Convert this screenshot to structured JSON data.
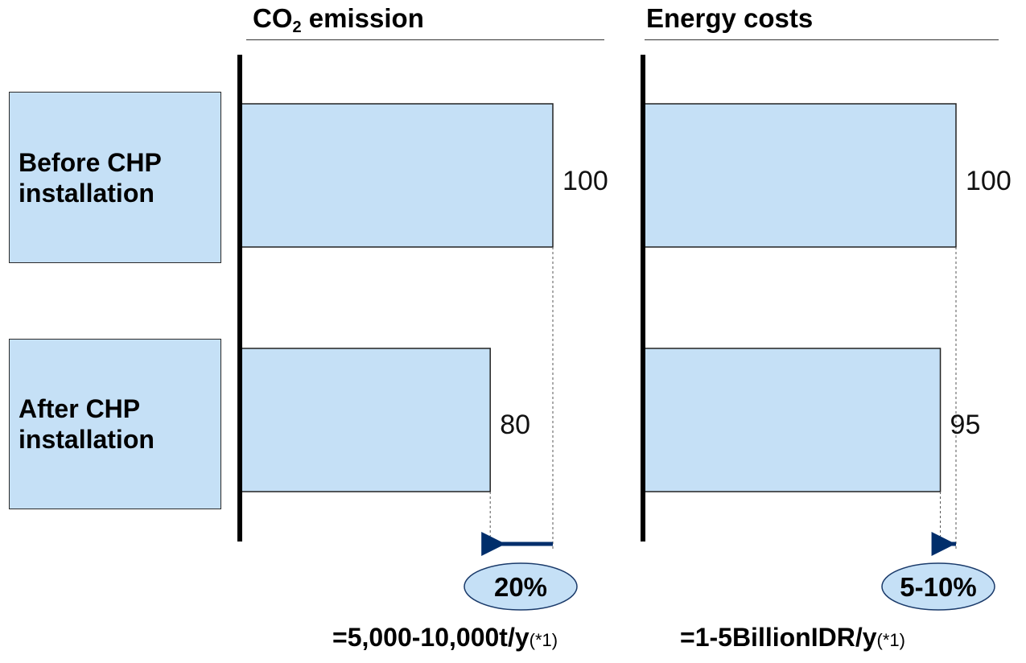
{
  "categories": [
    {
      "line1": "Before CHP",
      "line2": "installation"
    },
    {
      "line1": "After CHP",
      "line2": "installation"
    }
  ],
  "panels": [
    {
      "title_main": "CO",
      "title_sub": "2",
      "title_rest": " emission",
      "reduction_label": "20%",
      "footnote_main": "=5,000-10,000t/y",
      "footnote_ref": "(*1)"
    },
    {
      "title_main": "Energy costs",
      "title_sub": "",
      "title_rest": "",
      "reduction_label": "5-10%",
      "footnote_main": "=1-5BillionIDR/y",
      "footnote_ref": "(*1)"
    }
  ],
  "colors": {
    "bar_fill": "#c5e0f6",
    "arrow": "#002e6b",
    "axis": "#000000"
  },
  "chart_data": [
    {
      "type": "bar",
      "orientation": "horizontal",
      "title": "CO2 emission",
      "categories": [
        "Before CHP installation",
        "After CHP installation"
      ],
      "values": [
        100,
        80
      ],
      "value_labels": [
        "100",
        "80"
      ],
      "xlim": [
        0,
        100
      ],
      "grid": false,
      "annotation": "20%"
    },
    {
      "type": "bar",
      "orientation": "horizontal",
      "title": "Energy costs",
      "categories": [
        "Before CHP installation",
        "After CHP installation"
      ],
      "values": [
        100,
        95
      ],
      "value_labels": [
        "100",
        "95"
      ],
      "xlim": [
        0,
        100
      ],
      "grid": false,
      "annotation": "5-10%"
    }
  ]
}
